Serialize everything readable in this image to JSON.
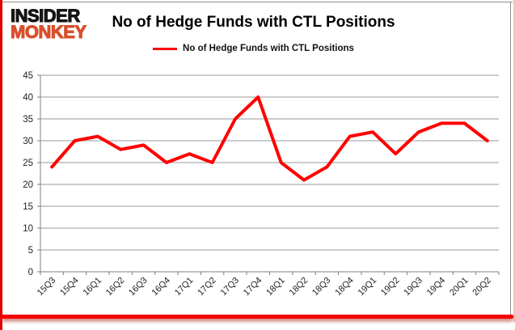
{
  "logo": {
    "line1": "INSIDER",
    "line2": "MONKEY",
    "line1_color": "#151515",
    "line2_color": "#d8502e"
  },
  "title": "No of Hedge Funds with CTL Positions",
  "legend": {
    "label": "No of Hedge Funds with CTL Positions",
    "line_color": "#ff0000"
  },
  "frame": {
    "left_border_color": "#e20000",
    "bottom_bar_color": "#f60000",
    "chart_border_color": "#8d8d8d"
  },
  "chart_data": {
    "type": "line",
    "title": "No of Hedge Funds with CTL Positions",
    "categories": [
      "15Q3",
      "15Q4",
      "16Q1",
      "16Q2",
      "16Q3",
      "16Q4",
      "17Q1",
      "17Q2",
      "17Q3",
      "17Q4",
      "18Q1",
      "18Q2",
      "18Q3",
      "18Q4",
      "19Q1",
      "19Q2",
      "19Q3",
      "19Q4",
      "20Q1",
      "20Q2"
    ],
    "series": [
      {
        "name": "No of Hedge Funds with CTL Positions",
        "color": "#ff0000",
        "values": [
          24,
          30,
          31,
          28,
          29,
          25,
          27,
          25,
          35,
          40,
          25,
          21,
          24,
          31,
          32,
          27,
          32,
          34,
          34,
          30
        ]
      }
    ],
    "xlabel": "",
    "ylabel": "",
    "ylim": [
      0,
      45
    ],
    "ytick_step": 5,
    "grid": true,
    "legend_position": "top-center",
    "gridline_color": "#9a9a9a",
    "axis_color": "#7f7f7f",
    "tick_label_color": "#1f1f1f"
  }
}
